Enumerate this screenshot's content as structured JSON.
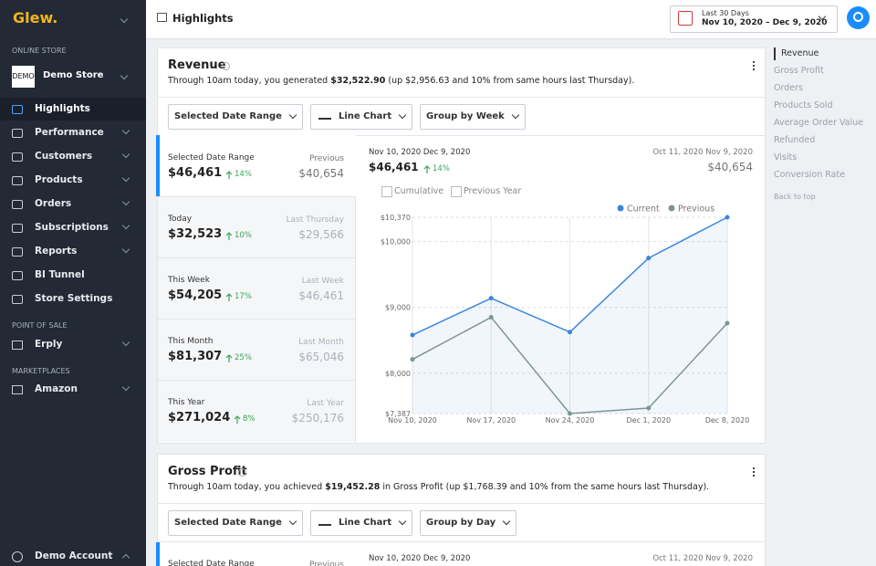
{
  "sidebar": {
    "logo": "Glew.",
    "online_store_heading": "ONLINE STORE",
    "store_logo": "DEMO",
    "store_name": "Demo Store",
    "nav": [
      "Highlights",
      "Performance",
      "Customers",
      "Products",
      "Orders",
      "Subscriptions",
      "Reports",
      "BI Tunnel",
      "Store Settings"
    ],
    "pos_heading": "POINT OF SALE",
    "pos_items": [
      "Erply"
    ],
    "marketplaces_heading": "MARKETPLACES",
    "marketplace_items": [
      "Amazon"
    ],
    "account": "Demo Account"
  },
  "header": {
    "title": "Highlights",
    "date_preset": "Last 30 Days",
    "date_range": "Nov 10, 2020 – Dec 9, 2020"
  },
  "right_nav": {
    "items": [
      "Revenue",
      "Gross Profit",
      "Orders",
      "Products Sold",
      "Average Order Value",
      "Refunded",
      "Visits",
      "Conversion Rate"
    ],
    "back_to_top": "Back to top"
  },
  "revenue": {
    "title": "Revenue",
    "description": [
      "Through 10am today, you generated ",
      "$32,522.90",
      " (up $2,956.63 and 10% from same hours last Thursday)."
    ],
    "controls": [
      "Selected Date Range",
      "Line Chart",
      "Group by Week"
    ],
    "stats": [
      {
        "label": "Selected Date Range",
        "value": "$46,461",
        "change": "14%",
        "compare_label": "Previous",
        "compare_value": "$40,654"
      },
      {
        "label": "Today",
        "value": "$32,523",
        "change": "10%",
        "compare_label": "Last Thursday",
        "compare_value": "$29,566"
      },
      {
        "label": "This Week",
        "value": "$54,205",
        "change": "17%",
        "compare_label": "Last Week",
        "compare_value": "$46,461"
      },
      {
        "label": "This Month",
        "value": "$81,307",
        "change": "25%",
        "compare_label": "Last Month",
        "compare_value": "$65,046"
      },
      {
        "label": "This Year",
        "value": "$271,024",
        "change": "8%",
        "compare_label": "Last Year",
        "compare_value": "$250,176"
      }
    ]
  },
  "gross_profit": {
    "title": "Gross Profit",
    "description": [
      "Through 10am today, you achieved ",
      "$19,452.28",
      " in Gross Profit (up $1,768.39 and 10% from the same hours last Thursday)."
    ],
    "controls": [
      "Selected Date Range",
      "Line Chart",
      "Group by Day"
    ],
    "stats": [
      {
        "label": "Selected Date Range",
        "compare_label": "Previous"
      }
    ],
    "current_period": "Nov 10, 2020 Dec 9, 2020",
    "previous_period": "Oct 11, 2020 Nov 9, 2020"
  },
  "chart_data": {
    "type": "line",
    "current_period": "Nov 10, 2020 Dec 9, 2020",
    "current_total": "$46,461",
    "current_change": "14%",
    "previous_period": "Oct 11, 2020 Nov 9, 2020",
    "previous_total": "$40,654",
    "checkboxes": [
      "Cumulative",
      "Previous Year"
    ],
    "categories": [
      "Nov 10, 2020",
      "Nov 17, 2020",
      "Nov 24, 2020",
      "Dec 1, 2020",
      "Dec 8, 2020"
    ],
    "series": [
      {
        "name": "Current",
        "color": "#3a86dc",
        "values": [
          8580,
          9140,
          8625,
          9750,
          10370
        ]
      },
      {
        "name": "Previous",
        "color": "#7f9593",
        "values": [
          8210,
          8850,
          7387,
          7470,
          8760
        ]
      }
    ],
    "ylim": [
      7387,
      10370
    ],
    "yticks": [
      {
        "value": 7387,
        "label": "$7,387"
      },
      {
        "value": 8000,
        "label": "$8,000"
      },
      {
        "value": 9000,
        "label": "$9,000"
      },
      {
        "value": 10000,
        "label": "$10,000"
      },
      {
        "value": 10370,
        "label": "$10,370"
      }
    ],
    "grid": true,
    "legend": "top-right"
  }
}
